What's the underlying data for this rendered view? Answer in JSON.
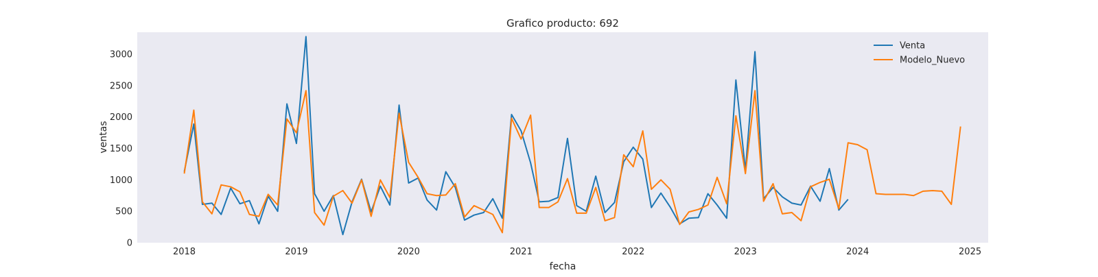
{
  "colors": {
    "background": "#ffffff",
    "plot_area": "#eaeaf2",
    "venta": "#1f77b4",
    "modelo_nuevo": "#ff7f0e",
    "text": "#262626"
  },
  "chart_data": {
    "type": "line",
    "title": "Grafico producto: 692",
    "xlabel": "fecha",
    "ylabel": "ventas",
    "xlim": [
      "2017-08-01",
      "2025-03-01"
    ],
    "ylim": [
      0,
      3350
    ],
    "x_ticks": [
      "2018-01-01",
      "2019-01-01",
      "2020-01-01",
      "2021-01-01",
      "2022-01-01",
      "2023-01-01",
      "2024-01-01",
      "2025-01-01"
    ],
    "x_tick_labels": [
      "2018",
      "2019",
      "2020",
      "2021",
      "2022",
      "2023",
      "2024",
      "2025"
    ],
    "y_ticks": [
      0,
      500,
      1000,
      1500,
      2000,
      2500,
      3000
    ],
    "y_tick_labels": [
      "0",
      "500",
      "1000",
      "1500",
      "2000",
      "2500",
      "3000"
    ],
    "grid": false,
    "legend_position": "top-right",
    "series": [
      {
        "name": "Venta",
        "x_start": "2018-01",
        "values": [
          1130,
          1890,
          610,
          630,
          450,
          870,
          620,
          670,
          300,
          740,
          500,
          2210,
          1580,
          3280,
          780,
          500,
          750,
          130,
          650,
          1010,
          490,
          900,
          600,
          2190,
          950,
          1030,
          680,
          520,
          1130,
          880,
          360,
          440,
          480,
          700,
          390,
          2040,
          1780,
          1270,
          650,
          660,
          720,
          1660,
          590,
          500,
          1060,
          480,
          640,
          1290,
          1520,
          1330,
          560,
          790,
          570,
          300,
          390,
          400,
          780,
          600,
          390,
          2590,
          1150,
          3040,
          700,
          880,
          730,
          630,
          600,
          900,
          660,
          1180,
          520,
          690
        ]
      },
      {
        "name": "Modelo_Nuevo",
        "x_start": "2018-01",
        "values": [
          1100,
          2110,
          650,
          460,
          920,
          890,
          810,
          450,
          420,
          770,
          600,
          1970,
          1750,
          2420,
          480,
          280,
          740,
          830,
          630,
          1000,
          420,
          1000,
          720,
          2060,
          1280,
          1040,
          780,
          750,
          760,
          940,
          410,
          590,
          520,
          450,
          160,
          1980,
          1650,
          2030,
          560,
          560,
          650,
          1020,
          470,
          470,
          880,
          350,
          400,
          1400,
          1210,
          1780,
          850,
          1000,
          850,
          290,
          490,
          530,
          600,
          1040,
          620,
          2020,
          1100,
          2420,
          660,
          940,
          460,
          480,
          350,
          890,
          960,
          1010,
          540,
          1590,
          1560,
          1480,
          780,
          770,
          770,
          770,
          750,
          820,
          830,
          820,
          610,
          1850
        ]
      }
    ]
  }
}
